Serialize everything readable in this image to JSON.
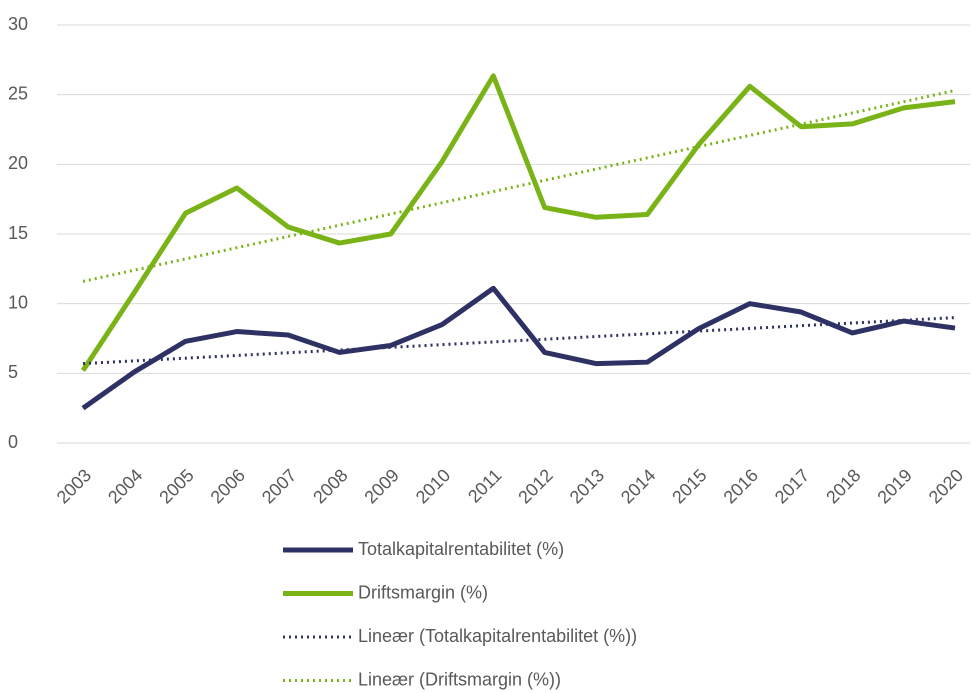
{
  "chart_data": {
    "type": "line",
    "x": [
      2003,
      2004,
      2005,
      2006,
      2007,
      2008,
      2009,
      2010,
      2011,
      2012,
      2013,
      2014,
      2015,
      2016,
      2017,
      2018,
      2019,
      2020
    ],
    "series": [
      {
        "name": "Totalkapitalrentabilitet (%)",
        "color": "#2e3163",
        "style": "solid",
        "values": [
          2.5,
          5.1,
          7.3,
          8.0,
          7.75,
          6.5,
          7.0,
          8.5,
          11.1,
          6.5,
          5.7,
          5.8,
          8.2,
          10.0,
          9.4,
          7.9,
          8.75,
          8.25
        ]
      },
      {
        "name": "Driftsmargin (%)",
        "color": "#7ab317",
        "style": "solid",
        "values": [
          5.2,
          10.8,
          16.5,
          18.3,
          15.5,
          14.35,
          15.0,
          20.2,
          26.35,
          16.9,
          16.2,
          16.4,
          21.4,
          25.6,
          22.7,
          22.9,
          24.05,
          24.5
        ]
      },
      {
        "name": "Lineær (Totalkapitalrentabilitet (%))",
        "color": "#2e3163",
        "style": "dotted",
        "x": [
          2003,
          2020
        ],
        "values": [
          5.7,
          9.0
        ]
      },
      {
        "name": "Lineær (Driftsmargin (%))",
        "color": "#7ab317",
        "style": "dotted",
        "x": [
          2003,
          2020
        ],
        "values": [
          11.6,
          25.3
        ]
      }
    ],
    "xlim": [
      2003,
      2020
    ],
    "ylim": [
      0,
      30
    ],
    "yticks": [
      0,
      5,
      10,
      15,
      20,
      25,
      30
    ],
    "grid": true,
    "legend": "bottom"
  }
}
